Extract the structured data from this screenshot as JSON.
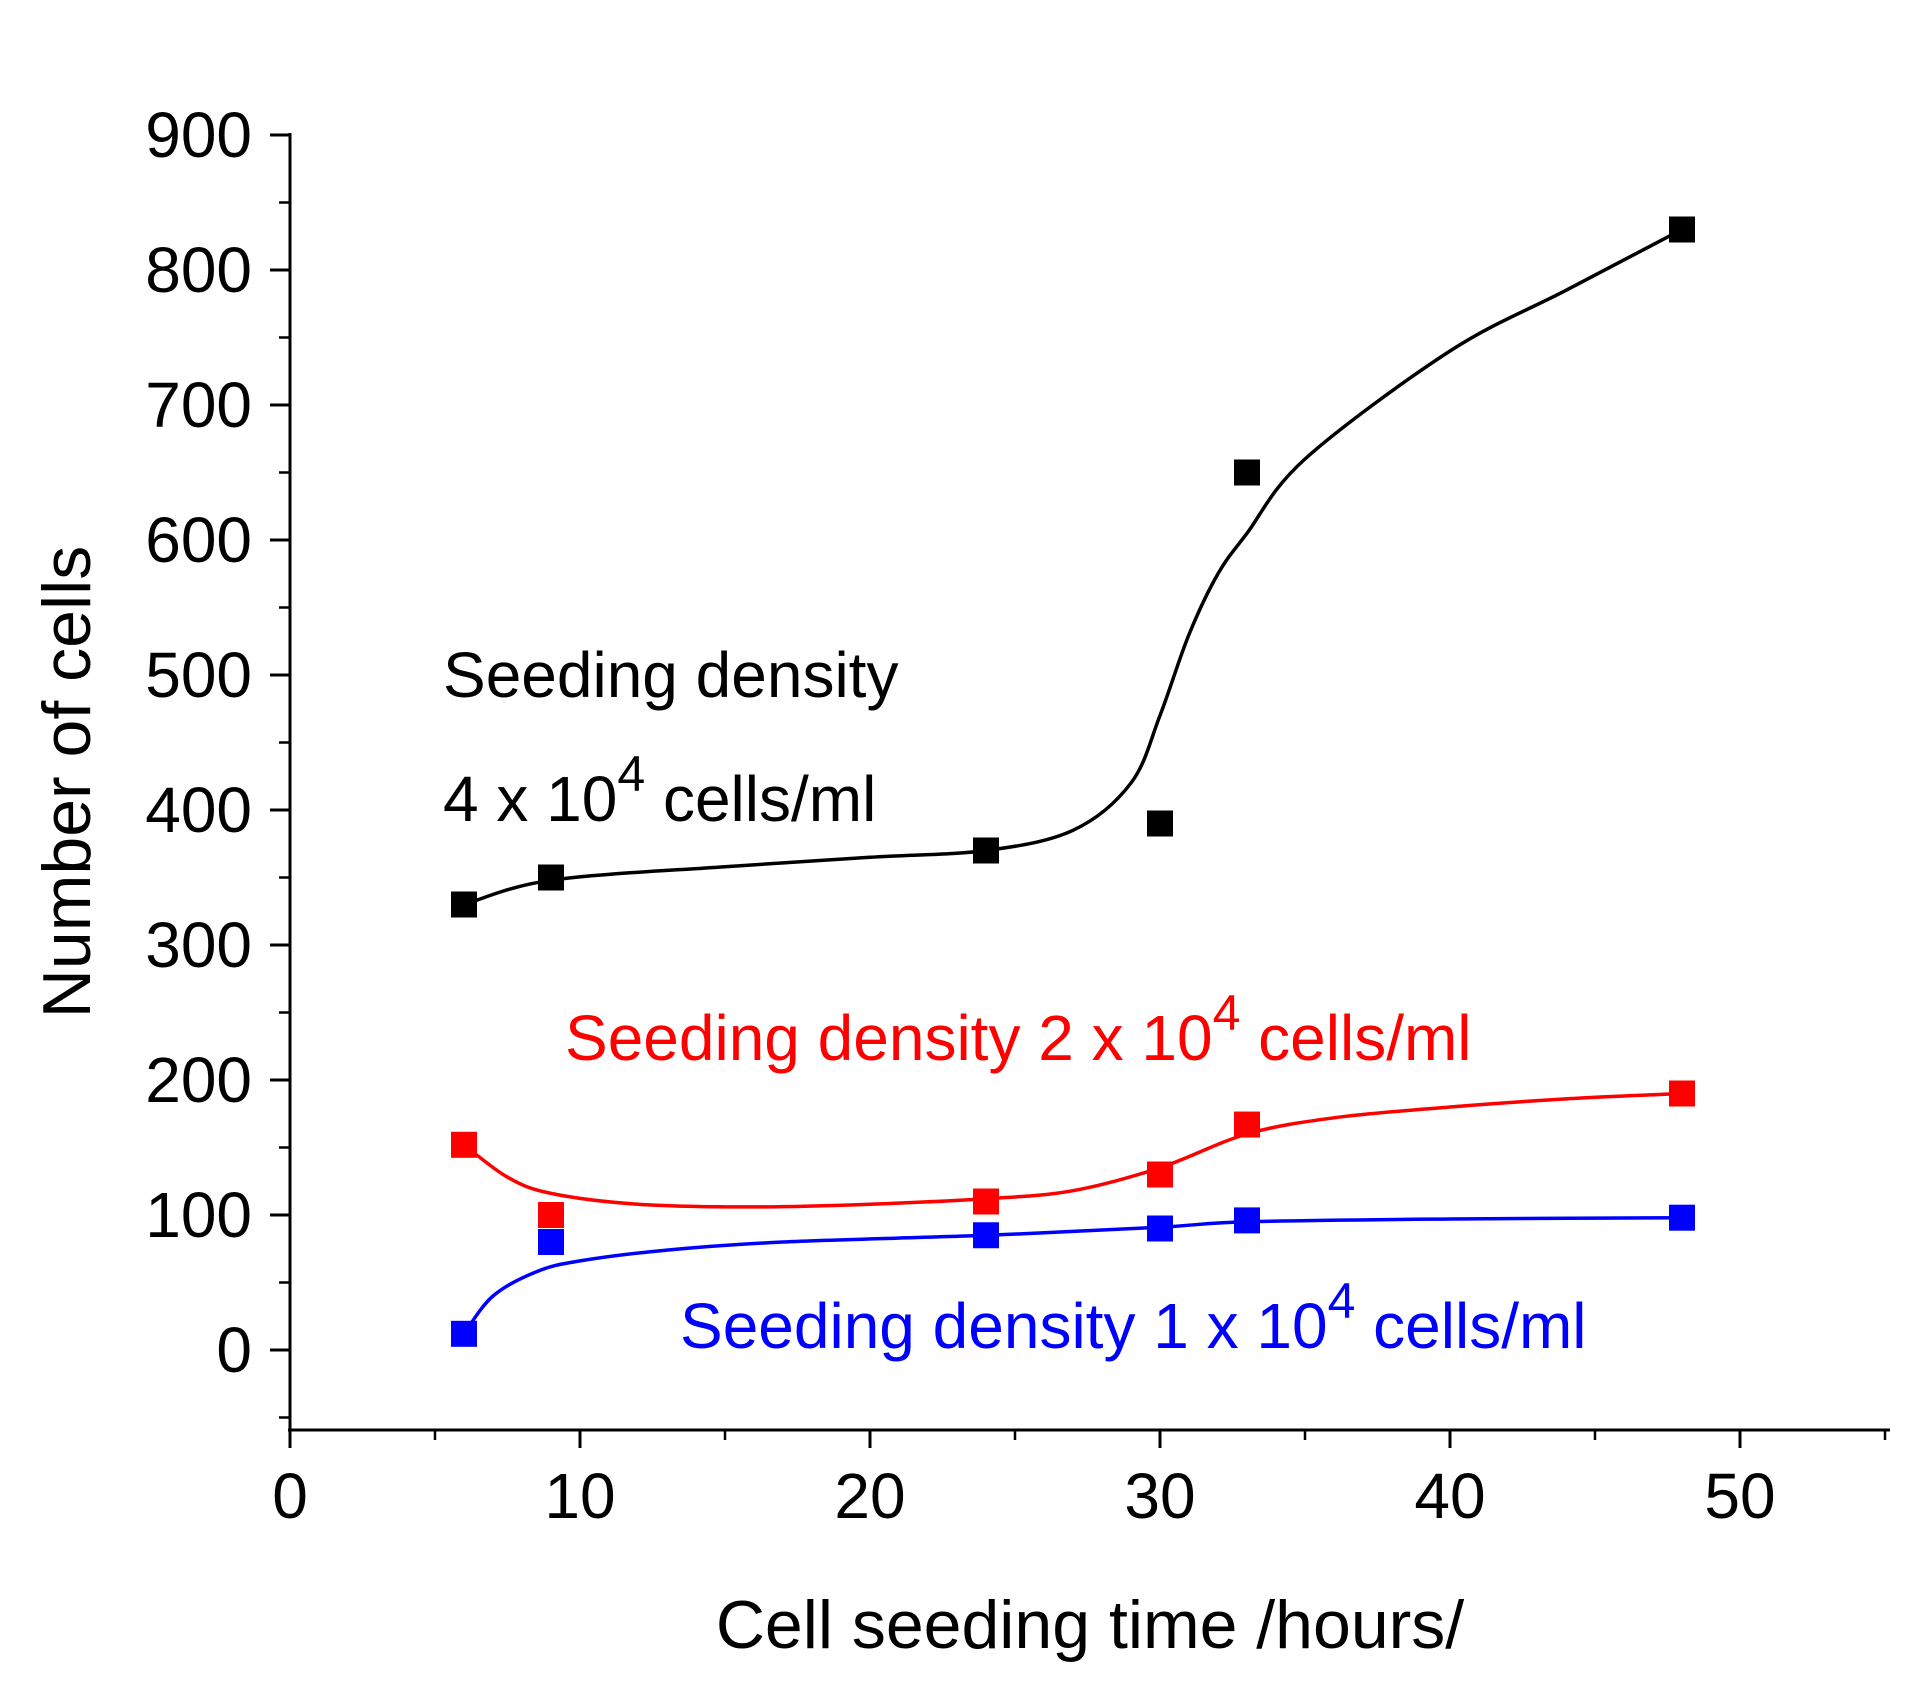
{
  "chart_data": {
    "type": "scatter",
    "title": "",
    "xlabel": "Cell seeding time /hours/",
    "ylabel": "Number of cells",
    "xlim": [
      0,
      55
    ],
    "ylim": [
      -50,
      900
    ],
    "x_ticks": [
      0,
      10,
      20,
      30,
      40,
      50
    ],
    "x_tick_labels": [
      "0",
      "10",
      "20",
      "30",
      "40",
      "50"
    ],
    "y_ticks": [
      0,
      100,
      200,
      300,
      400,
      500,
      600,
      700,
      800,
      900
    ],
    "y_tick_labels": [
      "0",
      "100",
      "200",
      "300",
      "400",
      "500",
      "600",
      "700",
      "800",
      "900"
    ],
    "grid": false,
    "series": [
      {
        "name": "Seeding density 4 x 10^4 cells/ml",
        "color": "#000000",
        "x": [
          6,
          9,
          24,
          30,
          33,
          48
        ],
        "y": [
          330,
          350,
          370,
          390,
          650,
          830
        ],
        "fit": [
          [
            6,
            330
          ],
          [
            9,
            348
          ],
          [
            15,
            358
          ],
          [
            20,
            365
          ],
          [
            24,
            370
          ],
          [
            27,
            385
          ],
          [
            29,
            420
          ],
          [
            30,
            470
          ],
          [
            31,
            530
          ],
          [
            32,
            575
          ],
          [
            33,
            605
          ],
          [
            35,
            660
          ],
          [
            40,
            740
          ],
          [
            44,
            785
          ],
          [
            48,
            830
          ]
        ]
      },
      {
        "name": "Seeding density 2 x 10^4 cells/ml",
        "color": "#ff0000",
        "x": [
          6,
          9,
          24,
          30,
          33,
          48
        ],
        "y": [
          152,
          100,
          110,
          130,
          167,
          190
        ],
        "fit": [
          [
            6,
            152
          ],
          [
            7.5,
            128
          ],
          [
            9,
            116
          ],
          [
            12,
            108
          ],
          [
            16,
            106
          ],
          [
            20,
            108
          ],
          [
            24,
            112
          ],
          [
            27,
            118
          ],
          [
            30,
            135
          ],
          [
            33,
            160
          ],
          [
            36,
            172
          ],
          [
            40,
            180
          ],
          [
            44,
            186
          ],
          [
            48,
            190
          ]
        ]
      },
      {
        "name": "Seeding density 1 x 10^4 cells/ml",
        "color": "#0000ff",
        "x": [
          6,
          9,
          24,
          30,
          33,
          48
        ],
        "y": [
          12,
          80,
          85,
          90,
          96,
          98
        ],
        "fit": [
          [
            6,
            12
          ],
          [
            7,
            40
          ],
          [
            8.5,
            58
          ],
          [
            10,
            66
          ],
          [
            13,
            74
          ],
          [
            17,
            80
          ],
          [
            24,
            85
          ],
          [
            30,
            91
          ],
          [
            33,
            95
          ],
          [
            40,
            97
          ],
          [
            48,
            98
          ]
        ]
      }
    ],
    "annotations": [
      {
        "line1": "Seeding density",
        "line2_prefix": "4 x 10",
        "line2_sup": "4",
        "line2_suffix": " cells/ml",
        "color": "#000000"
      },
      {
        "prefix": "Seeding density 2 x 10",
        "sup": "4",
        "suffix": " cells/ml",
        "color": "#ff0000"
      },
      {
        "prefix": "Seeding density 1 x 10",
        "sup": "4",
        "suffix": " cells/ml",
        "color": "#0000ff"
      }
    ]
  }
}
